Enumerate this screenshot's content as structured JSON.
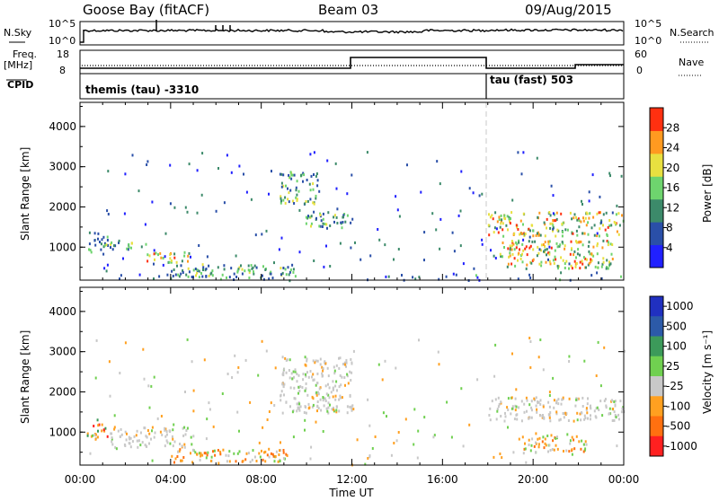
{
  "header": {
    "station": "Goose Bay (fitACF)",
    "beam": "Beam 03",
    "date": "09/Aug/2015"
  },
  "strip": {
    "nsky_label": "N.Sky",
    "nsky_ticks": [
      "10^5",
      "10^0"
    ],
    "nsearch_label": "N.Search",
    "nsearch_ticks": [
      "10^5",
      "10^0"
    ],
    "freq_label": "Freq.",
    "freq_unit": "[MHz]",
    "freq_ticks": [
      "18",
      "8"
    ],
    "nave_label": "Nave",
    "nave_ticks": [
      "60",
      "0"
    ],
    "cpid_label": "CPID",
    "cpid_segments": [
      {
        "label": "themis (tau) -3310",
        "start_hour": 0
      },
      {
        "label": "tau (fast) 503",
        "start_hour": 18
      }
    ]
  },
  "chart_data": [
    {
      "type": "heatmap",
      "panel": "power",
      "ylabel": "Slant Range [km]",
      "ylim": [
        180,
        4600
      ],
      "yticks": [
        "1000",
        "2000",
        "3000",
        "4000"
      ],
      "xlim_hours": [
        0,
        24
      ],
      "colorbar": {
        "label": "Power [dB]",
        "ticks": [
          "4",
          "8",
          "12",
          "16",
          "20",
          "24",
          "28"
        ],
        "colors": [
          "#2020ff",
          "#2a4fa8",
          "#3c8a6a",
          "#6ed46e",
          "#e8e040",
          "#ff9a20",
          "#ff3010"
        ]
      },
      "scatter_regions": [
        {
          "hours": [
            0.3,
            1.2
          ],
          "range_km": [
            850,
            1400
          ],
          "level": "medium"
        },
        {
          "hours": [
            1.3,
            3.0
          ],
          "range_km": [
            950,
            1150
          ],
          "level": "medium"
        },
        {
          "hours": [
            2.8,
            4.8
          ],
          "range_km": [
            650,
            900
          ],
          "level": "high"
        },
        {
          "hours": [
            4.0,
            9.5
          ],
          "range_km": [
            280,
            600
          ],
          "level": "medium"
        },
        {
          "hours": [
            8.8,
            10.5
          ],
          "range_km": [
            2100,
            2900
          ],
          "level": "medium"
        },
        {
          "hours": [
            9.8,
            12.0
          ],
          "range_km": [
            1500,
            1900
          ],
          "level": "medium"
        },
        {
          "hours": [
            18.0,
            24.0
          ],
          "range_km": [
            1300,
            1900
          ],
          "level": "high"
        },
        {
          "hours": [
            18.5,
            23.5
          ],
          "range_km": [
            500,
            1200
          ],
          "level": "high"
        },
        {
          "hours": [
            0,
            24
          ],
          "range_km": [
            190,
            350
          ],
          "level": "low"
        }
      ]
    },
    {
      "type": "heatmap",
      "panel": "velocity",
      "ylabel": "Slant Range [km]",
      "ylim": [
        180,
        4600
      ],
      "yticks": [
        "1000",
        "2000",
        "3000",
        "4000"
      ],
      "xlim_hours": [
        0,
        24
      ],
      "xticks": [
        "00:00",
        "04:00",
        "08:00",
        "12:00",
        "16:00",
        "20:00",
        "00:00"
      ],
      "xlabel": "Time UT",
      "colorbar": {
        "label": "Velocity [m s⁻¹]",
        "ticks": [
          "1000",
          "500",
          "100",
          "25",
          "-25",
          "-100",
          "-500",
          "-1000"
        ],
        "colors": [
          "#2030c0",
          "#2c5aa8",
          "#3c9a5a",
          "#70d050",
          "#c8c8c8",
          "#ffa020",
          "#ff7010",
          "#ff2020"
        ]
      },
      "scatter_regions": [
        {
          "hours": [
            0.3,
            1.2
          ],
          "range_km": [
            850,
            1400
          ],
          "level": "mixed"
        },
        {
          "hours": [
            1.3,
            5.0
          ],
          "range_km": [
            650,
            1150
          ],
          "level": "near-zero"
        },
        {
          "hours": [
            4.0,
            9.5
          ],
          "range_km": [
            280,
            600
          ],
          "level": "negative"
        },
        {
          "hours": [
            8.8,
            12.0
          ],
          "range_km": [
            1500,
            2900
          ],
          "level": "near-zero"
        },
        {
          "hours": [
            18.0,
            24.0
          ],
          "range_km": [
            1300,
            1900
          ],
          "level": "near-zero"
        },
        {
          "hours": [
            19.5,
            22.5
          ],
          "range_km": [
            500,
            1000
          ],
          "level": "negative"
        }
      ]
    }
  ]
}
